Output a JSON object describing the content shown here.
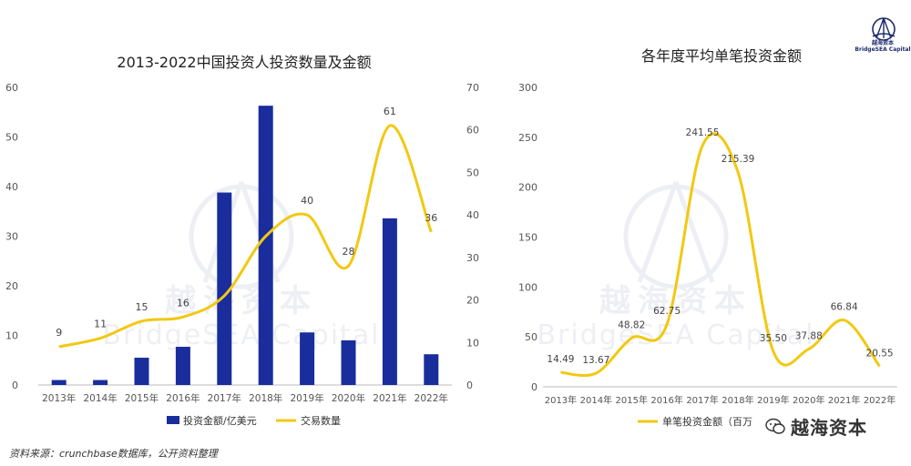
{
  "chart_data": [
    {
      "type": "bar",
      "title": "2013-2022中国投资人投资数量及金额",
      "categories": [
        "2013年",
        "2014年",
        "2015年",
        "2016年",
        "2017年",
        "2018年",
        "2019年",
        "2020年",
        "2021年",
        "2022年"
      ],
      "series": [
        {
          "name": "投资金额/亿美元",
          "type": "bar",
          "axis": "left",
          "color": "#1a2d9c",
          "values": [
            1,
            1,
            5.5,
            7.7,
            38.8,
            56.3,
            10.6,
            9,
            33.6,
            6.2
          ]
        },
        {
          "name": "交易数量",
          "type": "line",
          "axis": "right",
          "color": "#f2c811",
          "values": [
            9,
            11,
            15,
            16,
            21,
            35,
            40,
            28,
            61,
            36
          ]
        }
      ],
      "data_labels": [
        "9",
        "11",
        "15",
        "16",
        "",
        "",
        "40",
        "28",
        "61",
        "36"
      ],
      "y_left": {
        "min": 0,
        "max": 60,
        "ticks": [
          "0",
          "10",
          "20",
          "30",
          "40",
          "50",
          "60"
        ]
      },
      "y_right": {
        "min": 0,
        "max": 70,
        "ticks": [
          "0",
          "10",
          "20",
          "30",
          "40",
          "50",
          "60",
          "70"
        ]
      },
      "legend_position": "bottom",
      "grid": false
    },
    {
      "type": "line",
      "title": "各年度平均单笔投资金额",
      "categories": [
        "2013年",
        "2014年",
        "2015年",
        "2016年",
        "2017年",
        "2018年",
        "2019年",
        "2020年",
        "2021年",
        "2022年"
      ],
      "series": [
        {
          "name": "单笔投资金额（百万",
          "color": "#f2c811",
          "values": [
            14.49,
            13.67,
            48.82,
            62.75,
            241.55,
            215.39,
            35.5,
            37.88,
            66.84,
            20.55
          ]
        }
      ],
      "data_labels": [
        "14.49",
        "13.67",
        "48.82",
        "62.75",
        "241.55",
        "215.39",
        "35.50",
        "37.88",
        "66.84",
        "20.55"
      ],
      "y": {
        "min": 0,
        "max": 300,
        "ticks": [
          "0",
          "50",
          "100",
          "150",
          "200",
          "250",
          "300"
        ]
      },
      "legend_position": "bottom",
      "grid": false
    }
  ],
  "watermark": {
    "cn": "越海资本",
    "en": "BridgeSEA Capital"
  },
  "logo_text": {
    "cn": "越海资本",
    "en": "BridgeSEA Capital"
  },
  "source": "资料来源：crunchbase数据库，公开资料整理",
  "brand": "越海资本"
}
